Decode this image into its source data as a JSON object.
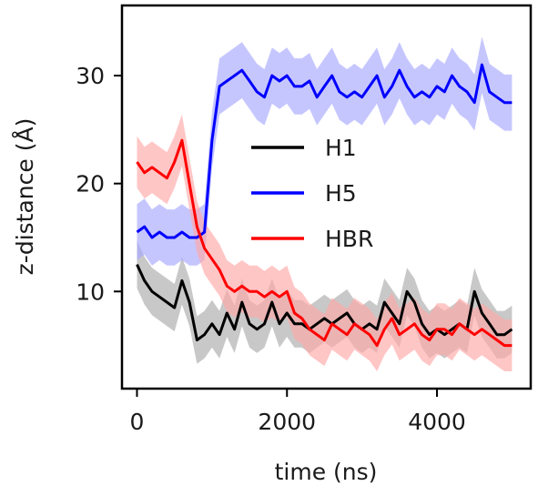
{
  "chart_data": {
    "type": "line",
    "xlabel": "time (ns)",
    "ylabel": "z-distance (Å)",
    "xlim": [
      -200,
      5250
    ],
    "ylim": [
      1,
      36.5
    ],
    "xticks": [
      0,
      2000,
      4000
    ],
    "yticks": [
      10,
      20,
      30
    ],
    "grid": false,
    "legend_position": "center",
    "series": [
      {
        "name": "H1",
        "color": "#000000",
        "band_color": "#aaaaaa",
        "band_width": 2.2,
        "x": [
          0,
          100,
          200,
          300,
          400,
          500,
          600,
          700,
          800,
          900,
          1000,
          1100,
          1200,
          1300,
          1400,
          1500,
          1600,
          1700,
          1800,
          1900,
          2000,
          2100,
          2200,
          2300,
          2400,
          2500,
          2600,
          2700,
          2800,
          2900,
          3000,
          3100,
          3200,
          3300,
          3400,
          3500,
          3600,
          3700,
          3800,
          3900,
          4000,
          4100,
          4200,
          4300,
          4400,
          4500,
          4600,
          4700,
          4800,
          4900,
          5000
        ],
        "values": [
          12.5,
          11,
          10,
          9.5,
          9,
          8.5,
          11,
          9,
          5.5,
          6,
          7,
          6,
          8,
          6.5,
          9,
          7,
          6.5,
          7,
          9,
          7,
          8,
          7,
          7,
          6.5,
          7,
          7.5,
          7,
          7.5,
          8,
          7,
          6.5,
          7,
          6.5,
          9,
          8,
          7,
          10,
          9,
          7,
          6,
          6.5,
          6,
          6.5,
          7,
          6.5,
          10,
          8,
          7,
          6,
          6,
          6.5
        ]
      },
      {
        "name": "H5",
        "color": "#0000ff",
        "band_color": "#a8a8ff",
        "band_width": 2.6,
        "x": [
          0,
          100,
          200,
          300,
          400,
          500,
          600,
          700,
          800,
          900,
          1000,
          1100,
          1200,
          1300,
          1400,
          1500,
          1600,
          1700,
          1800,
          1900,
          2000,
          2100,
          2200,
          2300,
          2400,
          2500,
          2600,
          2700,
          2800,
          2900,
          3000,
          3100,
          3200,
          3300,
          3400,
          3500,
          3600,
          3700,
          3800,
          3900,
          4000,
          4100,
          4200,
          4300,
          4400,
          4500,
          4600,
          4700,
          4800,
          4900,
          5000
        ],
        "values": [
          15.5,
          16,
          15,
          15.5,
          15,
          15,
          15.5,
          15,
          15,
          15.5,
          24,
          29,
          29.5,
          30,
          30.5,
          29.5,
          28.5,
          28,
          30,
          29.5,
          30,
          29,
          29,
          29.5,
          28,
          29,
          30,
          28.5,
          28,
          28.5,
          28,
          29,
          30,
          28,
          29,
          30.5,
          29,
          28,
          28.5,
          28,
          29,
          28.5,
          30,
          29,
          28.5,
          27.5,
          31,
          28.5,
          28,
          27.5,
          27.5
        ]
      },
      {
        "name": "HBR",
        "color": "#ff0000",
        "band_color": "#ffa8a8",
        "band_width": 2.4,
        "x": [
          0,
          100,
          200,
          300,
          400,
          500,
          600,
          700,
          800,
          900,
          1000,
          1100,
          1200,
          1300,
          1400,
          1500,
          1600,
          1700,
          1800,
          1900,
          2000,
          2100,
          2200,
          2300,
          2400,
          2500,
          2600,
          2700,
          2800,
          2900,
          3000,
          3100,
          3200,
          3300,
          3400,
          3500,
          3600,
          3700,
          3800,
          3900,
          4000,
          4100,
          4200,
          4300,
          4400,
          4500,
          4600,
          4700,
          4800,
          4900,
          5000
        ],
        "values": [
          22,
          21,
          21.5,
          21,
          20.5,
          22,
          24,
          20,
          16,
          14,
          13,
          12,
          10.5,
          10,
          10.5,
          10,
          10,
          9.5,
          10,
          9.5,
          10,
          8,
          7.5,
          6.5,
          6,
          5.5,
          7,
          6.5,
          6,
          7,
          6.5,
          6,
          5,
          6.5,
          7.5,
          6,
          6.5,
          7,
          6,
          5.5,
          6.5,
          6.5,
          6,
          7,
          6.5,
          6,
          6.5,
          6,
          5.5,
          5,
          5
        ]
      }
    ]
  }
}
